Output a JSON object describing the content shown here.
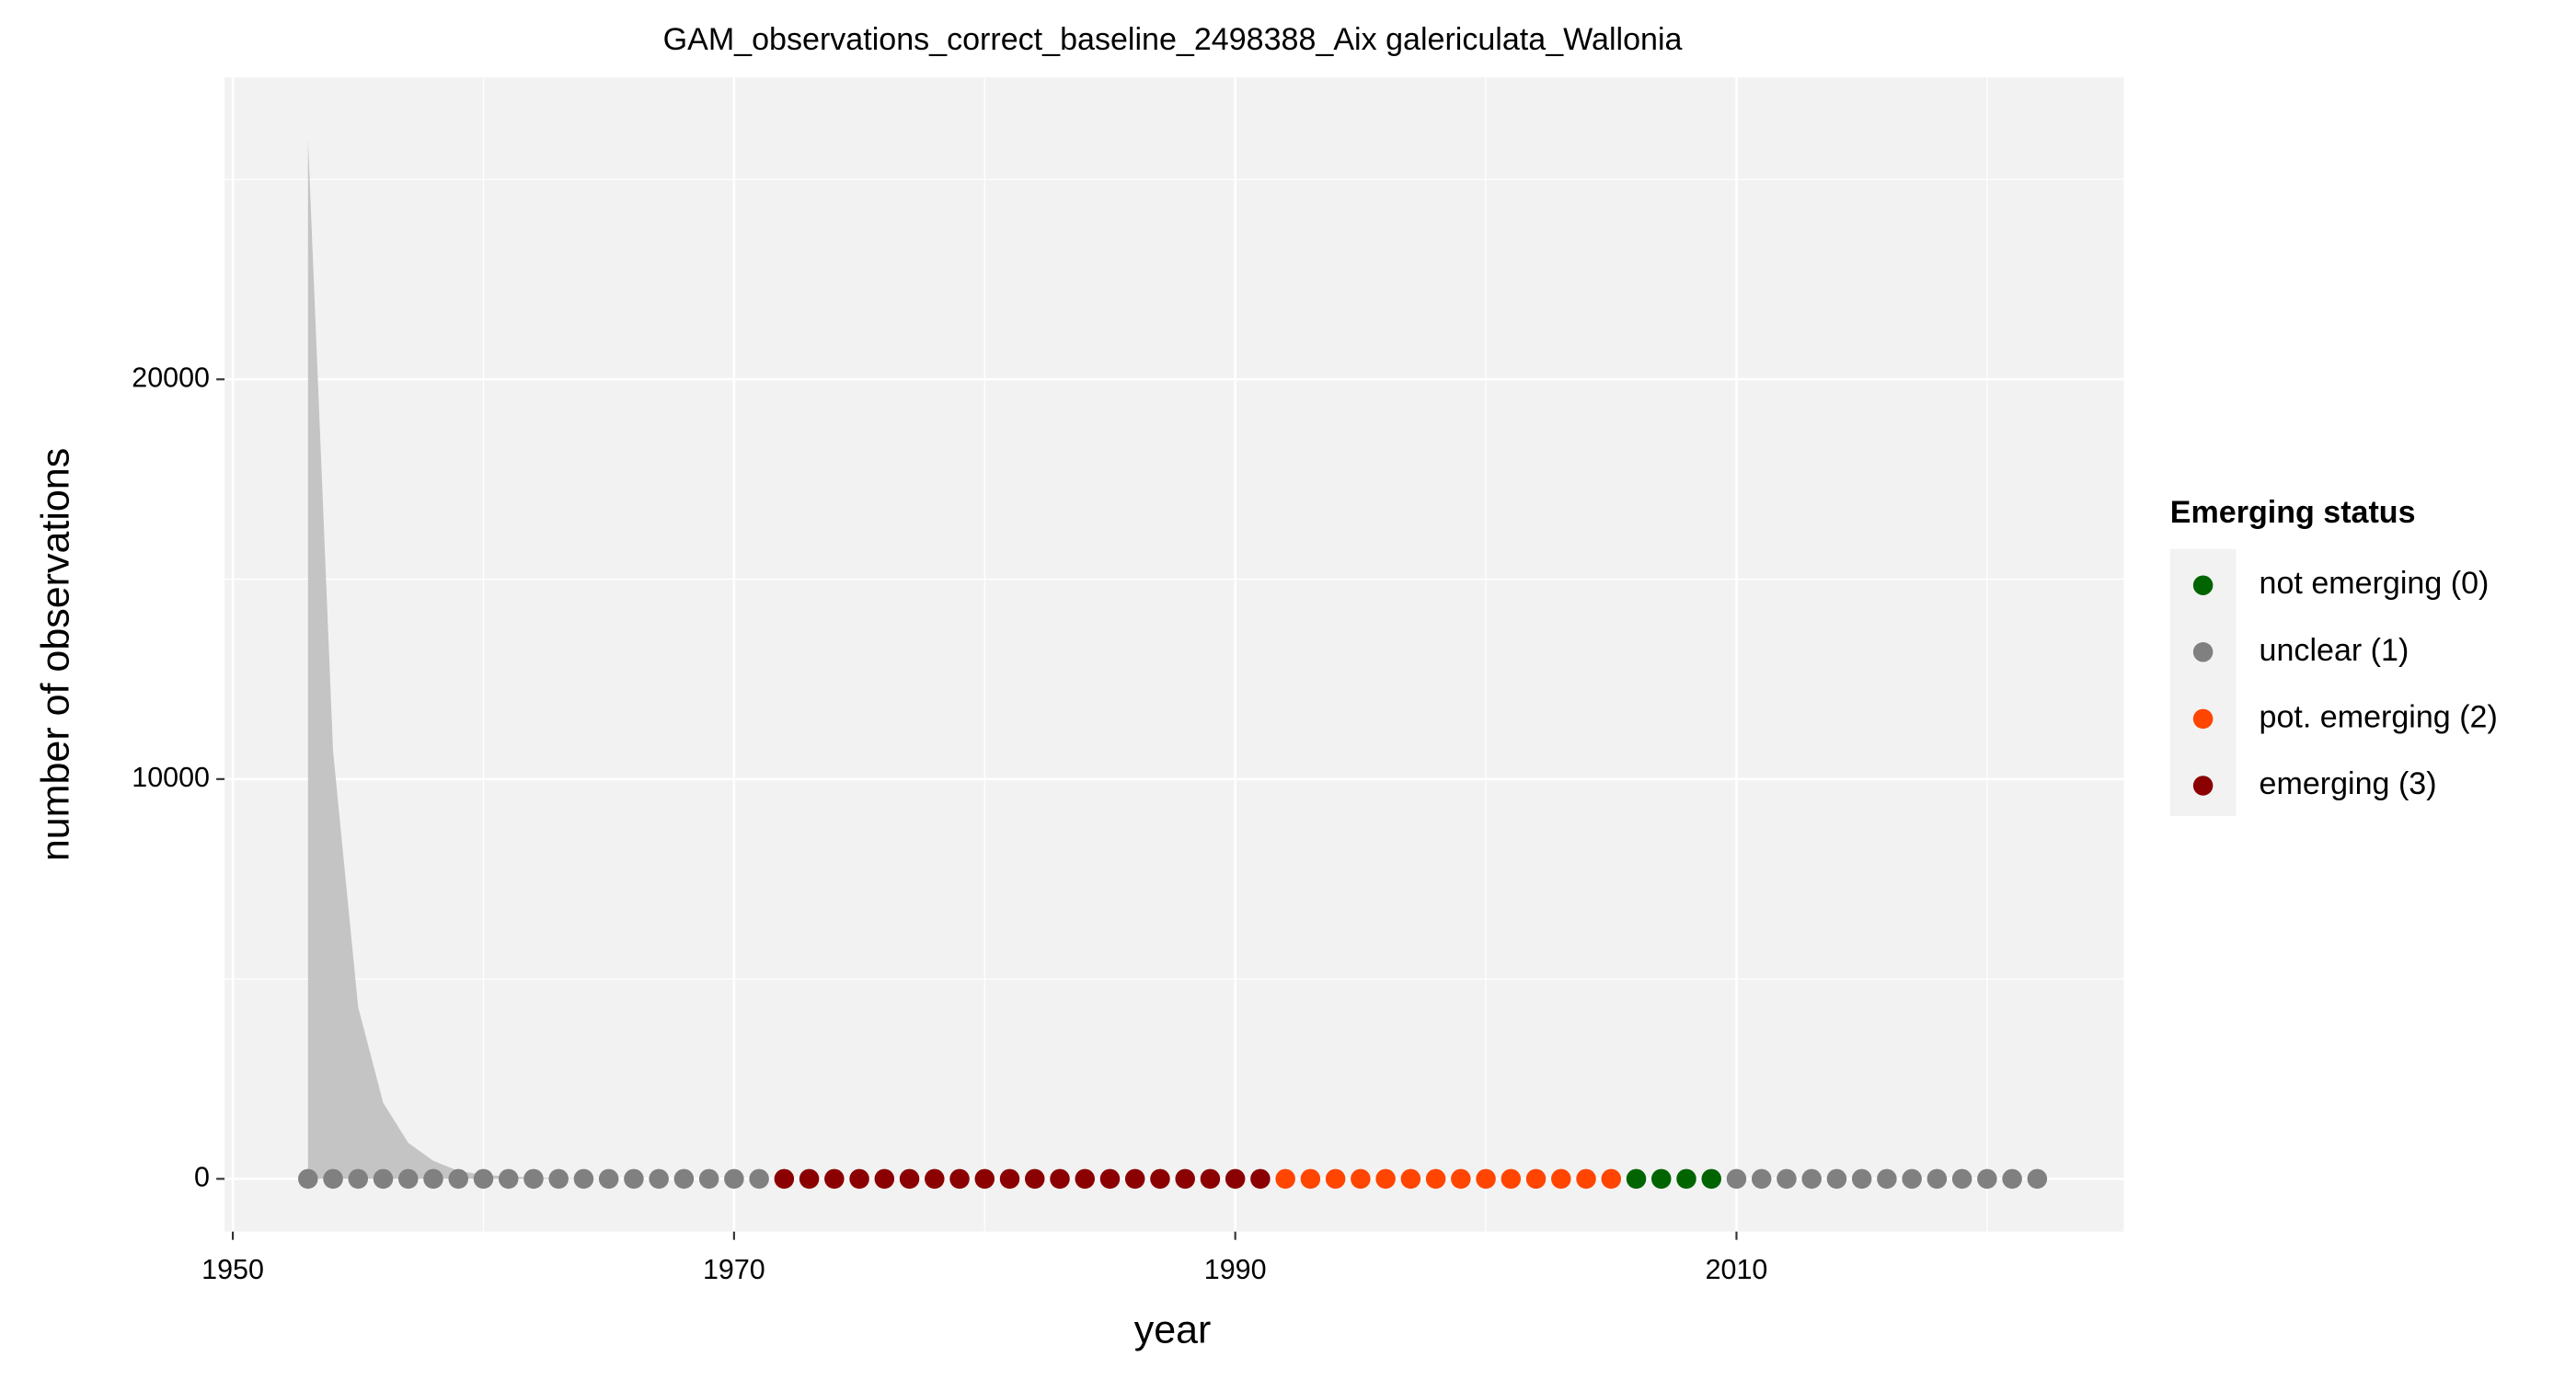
{
  "chart_data": {
    "type": "scatter",
    "title": "GAM_observations_correct_baseline_2498388_Aix galericulata_Wallonia",
    "x_label": "year",
    "y_label": "number of observations",
    "x": [
      1953,
      1954,
      1955,
      1956,
      1957,
      1958,
      1959,
      1960,
      1961,
      1962,
      1963,
      1964,
      1965,
      1966,
      1967,
      1968,
      1969,
      1970,
      1971,
      1972,
      1973,
      1974,
      1975,
      1976,
      1977,
      1978,
      1979,
      1980,
      1981,
      1982,
      1983,
      1984,
      1985,
      1986,
      1987,
      1988,
      1989,
      1990,
      1991,
      1992,
      1993,
      1994,
      1995,
      1996,
      1997,
      1998,
      1999,
      2000,
      2001,
      2002,
      2003,
      2004,
      2005,
      2006,
      2007,
      2008,
      2009,
      2010,
      2011,
      2012,
      2013,
      2014,
      2015,
      2016,
      2017,
      2018,
      2019,
      2020,
      2021,
      2022
    ],
    "ribbon": {
      "color": "#c4c4c4",
      "upper": [
        26000,
        10700,
        4300,
        1900,
        900,
        450,
        200,
        100,
        60,
        30,
        20,
        10,
        5,
        0,
        0,
        0,
        0,
        0,
        0,
        0,
        0,
        0,
        0,
        0,
        0,
        0,
        0,
        0,
        0,
        0,
        0,
        0,
        0,
        0,
        0,
        0,
        0,
        0,
        0,
        0,
        0,
        0,
        0,
        0,
        0,
        0,
        0,
        0,
        0,
        0,
        0,
        0,
        0,
        0,
        0,
        0,
        0,
        0,
        0,
        0,
        0,
        0,
        0,
        0,
        0,
        0,
        0,
        0,
        0,
        0
      ]
    },
    "legend_title": "Emerging status",
    "series": [
      {
        "name": "not emerging (0)",
        "color": "#006400",
        "values": [
          null,
          null,
          null,
          null,
          null,
          null,
          null,
          null,
          null,
          null,
          null,
          null,
          null,
          null,
          null,
          null,
          null,
          null,
          null,
          null,
          null,
          null,
          null,
          null,
          null,
          null,
          null,
          null,
          null,
          null,
          null,
          null,
          null,
          null,
          null,
          null,
          null,
          null,
          null,
          null,
          null,
          null,
          null,
          null,
          null,
          null,
          null,
          null,
          null,
          null,
          null,
          null,
          null,
          0,
          0,
          0,
          0,
          null,
          null,
          null,
          null,
          null,
          null,
          null,
          null,
          null,
          null,
          null,
          null,
          null
        ]
      },
      {
        "name": "unclear (1)",
        "color": "#808080",
        "values": [
          0,
          0,
          0,
          0,
          0,
          0,
          0,
          0,
          0,
          0,
          0,
          0,
          0,
          0,
          0,
          0,
          0,
          0,
          0,
          null,
          null,
          null,
          null,
          null,
          null,
          null,
          null,
          null,
          null,
          null,
          null,
          null,
          null,
          null,
          null,
          null,
          null,
          null,
          null,
          null,
          null,
          null,
          null,
          null,
          null,
          null,
          null,
          null,
          null,
          null,
          null,
          null,
          null,
          null,
          null,
          null,
          null,
          0,
          0,
          0,
          0,
          0,
          0,
          0,
          0,
          0,
          0,
          0,
          0,
          0
        ]
      },
      {
        "name": "pot. emerging (2)",
        "color": "#ff4500",
        "values": [
          null,
          null,
          null,
          null,
          null,
          null,
          null,
          null,
          null,
          null,
          null,
          null,
          null,
          null,
          null,
          null,
          null,
          null,
          null,
          null,
          null,
          null,
          null,
          null,
          null,
          null,
          null,
          null,
          null,
          null,
          null,
          null,
          null,
          null,
          null,
          null,
          null,
          null,
          null,
          0,
          0,
          0,
          0,
          0,
          0,
          0,
          0,
          0,
          0,
          0,
          0,
          0,
          0,
          null,
          null,
          null,
          null,
          null,
          null,
          null,
          null,
          null,
          null,
          null,
          null,
          null,
          null,
          null,
          null,
          null
        ]
      },
      {
        "name": "emerging (3)",
        "color": "#8b0000",
        "values": [
          null,
          null,
          null,
          null,
          null,
          null,
          null,
          null,
          null,
          null,
          null,
          null,
          null,
          null,
          null,
          null,
          null,
          null,
          null,
          0,
          0,
          0,
          0,
          0,
          0,
          0,
          0,
          0,
          0,
          0,
          0,
          0,
          0,
          0,
          0,
          0,
          0,
          0,
          0,
          null,
          null,
          null,
          null,
          null,
          null,
          null,
          null,
          null,
          null,
          null,
          null,
          null,
          null,
          null,
          null,
          null,
          null,
          null,
          null,
          null,
          null,
          null,
          null,
          null,
          null,
          null,
          null,
          null,
          null,
          null
        ]
      }
    ],
    "xlim": [
      1949.67,
      2025.46
    ],
    "xticks": [
      1950,
      1970,
      1990,
      2010
    ],
    "ylim": [
      -1320,
      27550
    ],
    "yticks": [
      0,
      10000,
      20000
    ],
    "grid": true,
    "legend_position": "right"
  }
}
